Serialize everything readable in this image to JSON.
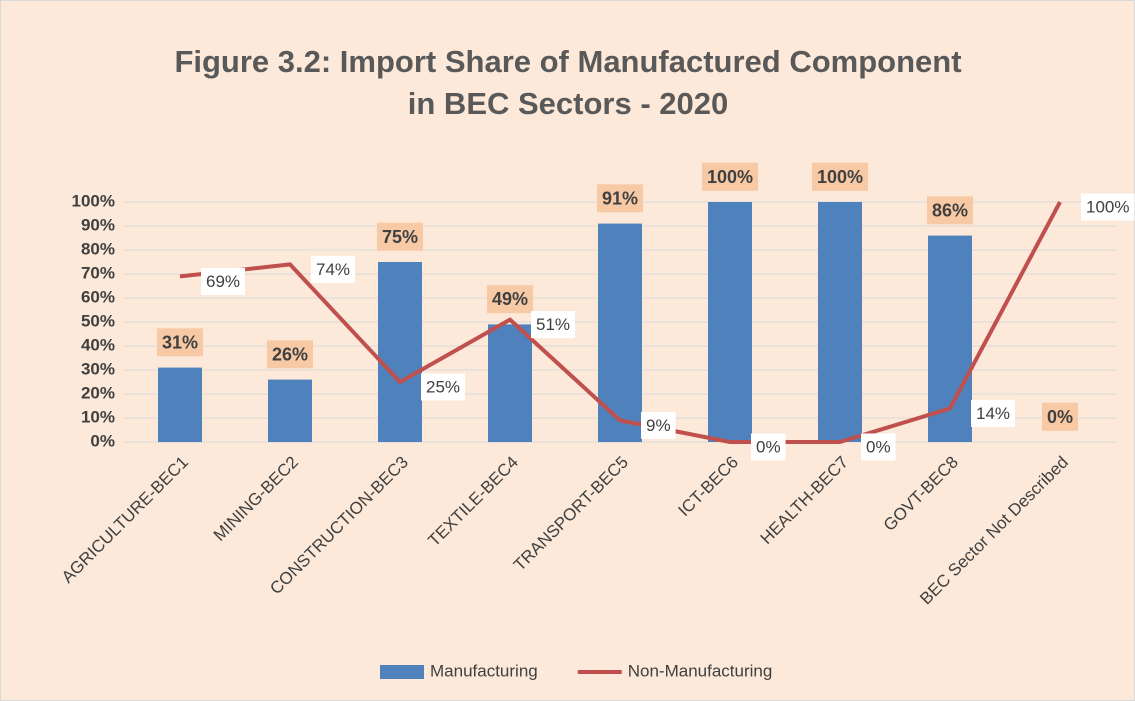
{
  "chart_data": {
    "type": "bar",
    "title": "Figure 3.2: Import Share of Manufactured Component in BEC Sectors - 2020",
    "categories": [
      "AGRICULTURE-BEC1",
      "MINING-BEC2",
      "CONSTRUCTION-BEC3",
      "TEXTILE-BEC4",
      "TRANSPORT-BEC5",
      "ICT-BEC6",
      "HEALTH-BEC7",
      "GOVT-BEC8",
      "BEC Sector Not Described"
    ],
    "series": [
      {
        "name": "Manufacturing",
        "type": "bar",
        "color": "#4f81bd",
        "values": [
          31,
          26,
          75,
          49,
          91,
          100,
          100,
          86,
          0
        ],
        "value_labels": [
          "31%",
          "26%",
          "75%",
          "49%",
          "91%",
          "100%",
          "100%",
          "86%",
          "0%"
        ]
      },
      {
        "name": "Non-Manufacturing",
        "type": "line",
        "color": "#c0504d",
        "values": [
          69,
          74,
          25,
          51,
          9,
          0,
          0,
          14,
          100
        ],
        "value_labels": [
          "69%",
          "74%",
          "25%",
          "51%",
          "9%",
          "0%",
          "0%",
          "14%",
          "100%"
        ]
      }
    ],
    "ylim": [
      0,
      100
    ],
    "yticks": [
      {
        "value": 0,
        "label": "0%"
      },
      {
        "value": 10,
        "label": "10%"
      },
      {
        "value": 20,
        "label": "20%"
      },
      {
        "value": 30,
        "label": "30%"
      },
      {
        "value": 40,
        "label": "40%"
      },
      {
        "value": 50,
        "label": "50%"
      },
      {
        "value": 60,
        "label": "60%"
      },
      {
        "value": 70,
        "label": "70%"
      },
      {
        "value": 80,
        "label": "80%"
      },
      {
        "value": 90,
        "label": "90%"
      },
      {
        "value": 100,
        "label": "100%"
      }
    ],
    "grid": true,
    "legend": "bottom"
  }
}
